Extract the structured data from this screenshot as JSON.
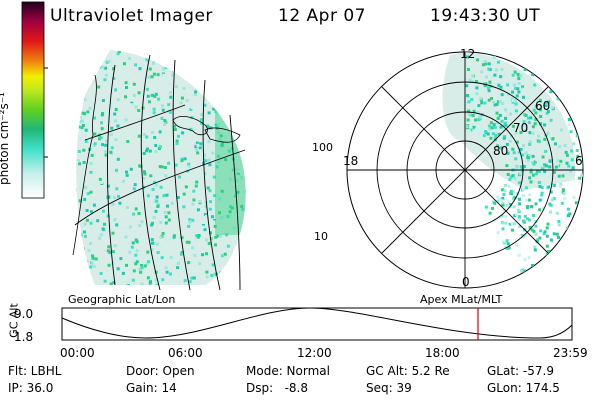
{
  "header": {
    "title": "Ultraviolet Imager",
    "date": "12 Apr 07",
    "time": "19:43:30 UT"
  },
  "colorbar": {
    "label": "photon cm⁻²s⁻¹",
    "ticks": [
      "100",
      "10"
    ],
    "colors": [
      "#ffffff",
      "#c8f0ec",
      "#40e0c8",
      "#20b878",
      "#60d020",
      "#c0e820",
      "#f0f000",
      "#f08010",
      "#e01818",
      "#a00040",
      "#200020"
    ]
  },
  "geo_panel": {
    "caption": "Geographic Lat/Lon"
  },
  "polar_panel": {
    "caption": "Apex MLat/MLT",
    "mlt_labels": {
      "top": "12",
      "bottom": "0",
      "left": "18",
      "right": "6"
    },
    "lat_labels": [
      "60",
      "70",
      "80"
    ]
  },
  "alt_plot": {
    "ylabel": "GC Alt",
    "yticks": [
      "9.0",
      "1.8"
    ],
    "xticks": [
      "00:00",
      "06:00",
      "12:00",
      "18:00",
      "23:59"
    ],
    "current_marker_color": "#e00000"
  },
  "info": {
    "flt": "Flt: LBHL",
    "ip": "IP: 36.0",
    "door": "Door: Open",
    "gain": "Gain: 14",
    "mode": "Mode: Normal",
    "dsp": "Dsp:   -8.8",
    "gcalt": "GC Alt: 5.2 Re",
    "seq": "Seq: 39",
    "glat": "GLat: -57.9",
    "glon": "GLon: 174.5"
  }
}
